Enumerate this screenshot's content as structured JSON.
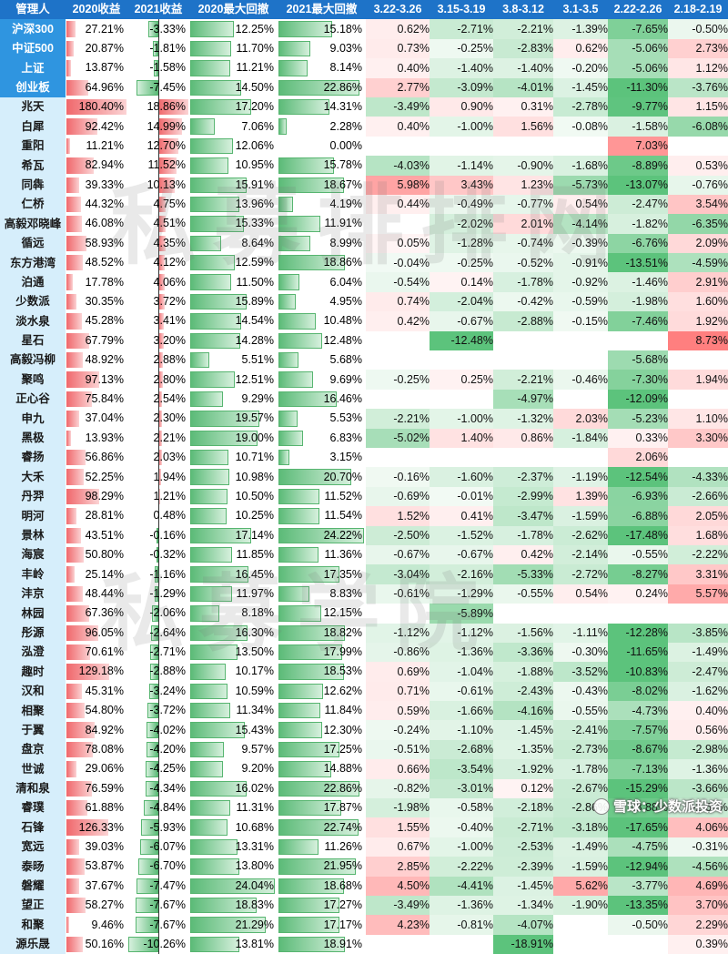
{
  "columns": [
    "管理人",
    "2020收益",
    "2021收益",
    "2020最大回撤",
    "2021最大回撤",
    "3.22-3.26",
    "3.15-3.19",
    "3.8-3.12",
    "3.1-3.5",
    "2.22-2.26",
    "2.18-2.19"
  ],
  "watermark_top": "私募排排网",
  "watermark_bottom": "私募学院",
  "credit": "雪球：少数派投资",
  "colors": {
    "header": "#1e73c8",
    "index_name": "#2f95e0",
    "name_bg": "#d6eefb",
    "red": "#f0686c",
    "green": "#5cbb78"
  },
  "rows": [
    {
      "name": "沪深300",
      "is_index": true,
      "r2020": "27.21%",
      "r2021": "-3.33%",
      "dd2020": "12.25%",
      "dd2021": "15.18%",
      "w1": "0.62%",
      "w2": "-2.71%",
      "w3": "-2.21%",
      "w4": "-1.39%",
      "w5": "-7.65%",
      "w6": "-0.50%"
    },
    {
      "name": "中证500",
      "is_index": true,
      "r2020": "20.87%",
      "r2021": "-1.81%",
      "dd2020": "11.70%",
      "dd2021": "9.03%",
      "w1": "0.73%",
      "w2": "-0.25%",
      "w3": "-2.83%",
      "w4": "0.62%",
      "w5": "-5.06%",
      "w6": "2.73%"
    },
    {
      "name": "上证",
      "is_index": true,
      "r2020": "13.87%",
      "r2021": "-1.58%",
      "dd2020": "11.21%",
      "dd2021": "8.14%",
      "w1": "0.40%",
      "w2": "-1.40%",
      "w3": "-1.40%",
      "w4": "-0.20%",
      "w5": "-5.06%",
      "w6": "1.12%"
    },
    {
      "name": "创业板",
      "is_index": true,
      "r2020": "64.96%",
      "r2021": "-7.45%",
      "dd2020": "14.50%",
      "dd2021": "22.86%",
      "w1": "2.77%",
      "w2": "-3.09%",
      "w3": "-4.01%",
      "w4": "-1.45%",
      "w5": "-11.30%",
      "w6": "-3.76%"
    },
    {
      "name": "兆天",
      "r2020": "180.40%",
      "r2021": "18.86%",
      "dd2020": "17.20%",
      "dd2021": "14.31%",
      "w1": "-3.49%",
      "w2": "0.90%",
      "w3": "0.31%",
      "w4": "-2.78%",
      "w5": "-9.77%",
      "w6": "1.15%"
    },
    {
      "name": "白犀",
      "r2020": "92.42%",
      "r2021": "14.99%",
      "dd2020": "7.06%",
      "dd2021": "2.28%",
      "w1": "0.40%",
      "w2": "-1.00%",
      "w3": "1.56%",
      "w4": "-0.08%",
      "w5": "-1.58%",
      "w6": "-6.08%"
    },
    {
      "name": "重阳",
      "r2020": "11.21%",
      "r2021": "12.70%",
      "dd2020": "12.06%",
      "dd2021": "0.00%",
      "w1": "",
      "w2": "",
      "w3": "",
      "w4": "",
      "w5": "7.03%",
      "w6": ""
    },
    {
      "name": "希瓦",
      "r2020": "82.94%",
      "r2021": "11.52%",
      "dd2020": "10.95%",
      "dd2021": "15.78%",
      "w1": "-4.03%",
      "w2": "-1.14%",
      "w3": "-0.90%",
      "w4": "-1.68%",
      "w5": "-8.89%",
      "w6": "0.53%"
    },
    {
      "name": "同犇",
      "r2020": "39.33%",
      "r2021": "10.13%",
      "dd2020": "15.91%",
      "dd2021": "18.67%",
      "w1": "5.98%",
      "w2": "3.43%",
      "w3": "1.23%",
      "w4": "-5.73%",
      "w5": "-13.07%",
      "w6": "-0.76%"
    },
    {
      "name": "仁桥",
      "r2020": "44.32%",
      "r2021": "4.75%",
      "dd2020": "13.96%",
      "dd2021": "4.19%",
      "w1": "0.44%",
      "w2": "-0.49%",
      "w3": "-0.77%",
      "w4": "0.54%",
      "w5": "-2.47%",
      "w6": "3.54%"
    },
    {
      "name": "高毅邓晓峰",
      "r2020": "46.08%",
      "r2021": "4.51%",
      "dd2020": "15.33%",
      "dd2021": "11.91%",
      "w1": "",
      "w2": "-2.02%",
      "w3": "2.01%",
      "w4": "-4.14%",
      "w5": "-1.82%",
      "w6": "-6.35%"
    },
    {
      "name": "循远",
      "r2020": "58.93%",
      "r2021": "4.35%",
      "dd2020": "8.64%",
      "dd2021": "8.99%",
      "w1": "0.05%",
      "w2": "-1.28%",
      "w3": "-0.74%",
      "w4": "-0.39%",
      "w5": "-6.76%",
      "w6": "2.09%"
    },
    {
      "name": "东方港湾",
      "r2020": "48.52%",
      "r2021": "4.12%",
      "dd2020": "12.59%",
      "dd2021": "18.86%",
      "w1": "-0.04%",
      "w2": "-0.25%",
      "w3": "-0.52%",
      "w4": "-0.91%",
      "w5": "-13.51%",
      "w6": "-4.59%"
    },
    {
      "name": "泊通",
      "r2020": "17.78%",
      "r2021": "4.06%",
      "dd2020": "11.50%",
      "dd2021": "6.04%",
      "w1": "-0.54%",
      "w2": "0.14%",
      "w3": "-1.78%",
      "w4": "-0.92%",
      "w5": "-1.46%",
      "w6": "2.91%"
    },
    {
      "name": "少数派",
      "r2020": "30.35%",
      "r2021": "3.72%",
      "dd2020": "15.89%",
      "dd2021": "4.95%",
      "w1": "0.74%",
      "w2": "-2.04%",
      "w3": "-0.42%",
      "w4": "-0.59%",
      "w5": "-1.98%",
      "w6": "1.60%"
    },
    {
      "name": "淡水泉",
      "r2020": "45.28%",
      "r2021": "3.41%",
      "dd2020": "14.54%",
      "dd2021": "10.48%",
      "w1": "0.42%",
      "w2": "-0.67%",
      "w3": "-2.88%",
      "w4": "-0.15%",
      "w5": "-7.46%",
      "w6": "1.92%"
    },
    {
      "name": "星石",
      "r2020": "67.79%",
      "r2021": "3.20%",
      "dd2020": "14.28%",
      "dd2021": "12.48%",
      "w1": "",
      "w2": "-12.48%",
      "w3": "",
      "w4": "",
      "w5": "",
      "w6": "8.73%"
    },
    {
      "name": "高毅冯柳",
      "r2020": "48.92%",
      "r2021": "2.88%",
      "dd2020": "5.51%",
      "dd2021": "5.68%",
      "w1": "",
      "w2": "",
      "w3": "",
      "w4": "",
      "w5": "-5.68%",
      "w6": ""
    },
    {
      "name": "聚鸣",
      "r2020": "97.13%",
      "r2021": "2.80%",
      "dd2020": "12.51%",
      "dd2021": "9.69%",
      "w1": "-0.25%",
      "w2": "0.25%",
      "w3": "-2.21%",
      "w4": "-0.46%",
      "w5": "-7.30%",
      "w6": "1.94%"
    },
    {
      "name": "正心谷",
      "r2020": "75.84%",
      "r2021": "2.54%",
      "dd2020": "9.29%",
      "dd2021": "16.46%",
      "w1": "",
      "w2": "",
      "w3": "-4.97%",
      "w4": "",
      "w5": "-12.09%",
      "w6": ""
    },
    {
      "name": "申九",
      "r2020": "37.04%",
      "r2021": "2.30%",
      "dd2020": "19.57%",
      "dd2021": "5.53%",
      "w1": "-2.21%",
      "w2": "-1.00%",
      "w3": "-1.32%",
      "w4": "2.03%",
      "w5": "-5.23%",
      "w6": "1.10%"
    },
    {
      "name": "黑极",
      "r2020": "13.93%",
      "r2021": "2.21%",
      "dd2020": "19.00%",
      "dd2021": "6.83%",
      "w1": "-5.02%",
      "w2": "1.40%",
      "w3": "0.86%",
      "w4": "-1.84%",
      "w5": "0.33%",
      "w6": "3.30%"
    },
    {
      "name": "睿扬",
      "r2020": "56.86%",
      "r2021": "2.03%",
      "dd2020": "10.71%",
      "dd2021": "3.15%",
      "w1": "",
      "w2": "",
      "w3": "",
      "w4": "",
      "w5": "2.06%",
      "w6": ""
    },
    {
      "name": "大禾",
      "r2020": "52.25%",
      "r2021": "1.94%",
      "dd2020": "10.98%",
      "dd2021": "20.70%",
      "w1": "-0.16%",
      "w2": "-1.60%",
      "w3": "-2.37%",
      "w4": "-1.19%",
      "w5": "-12.54%",
      "w6": "-4.33%"
    },
    {
      "name": "丹羿",
      "r2020": "98.29%",
      "r2021": "1.21%",
      "dd2020": "10.50%",
      "dd2021": "11.52%",
      "w1": "-0.69%",
      "w2": "-0.01%",
      "w3": "-2.99%",
      "w4": "1.39%",
      "w5": "-6.93%",
      "w6": "-2.66%"
    },
    {
      "name": "明河",
      "r2020": "28.81%",
      "r2021": "0.48%",
      "dd2020": "10.25%",
      "dd2021": "11.54%",
      "w1": "1.52%",
      "w2": "0.41%",
      "w3": "-3.47%",
      "w4": "-1.59%",
      "w5": "-6.88%",
      "w6": "2.05%"
    },
    {
      "name": "景林",
      "r2020": "43.51%",
      "r2021": "-0.16%",
      "dd2020": "17.14%",
      "dd2021": "24.22%",
      "w1": "-2.50%",
      "w2": "-1.52%",
      "w3": "-1.78%",
      "w4": "-2.62%",
      "w5": "-17.48%",
      "w6": "1.68%"
    },
    {
      "name": "海宸",
      "r2020": "50.80%",
      "r2021": "-0.32%",
      "dd2020": "11.85%",
      "dd2021": "11.36%",
      "w1": "-0.67%",
      "w2": "-0.67%",
      "w3": "0.42%",
      "w4": "-2.14%",
      "w5": "-0.55%",
      "w6": "-2.22%"
    },
    {
      "name": "丰岭",
      "r2020": "25.14%",
      "r2021": "-1.16%",
      "dd2020": "16.45%",
      "dd2021": "17.35%",
      "w1": "-3.04%",
      "w2": "-2.16%",
      "w3": "-5.33%",
      "w4": "-2.72%",
      "w5": "-8.27%",
      "w6": "3.31%"
    },
    {
      "name": "沣京",
      "r2020": "48.44%",
      "r2021": "-1.29%",
      "dd2020": "11.97%",
      "dd2021": "8.83%",
      "w1": "-0.61%",
      "w2": "-1.29%",
      "w3": "-0.55%",
      "w4": "0.54%",
      "w5": "0.24%",
      "w6": "5.57%"
    },
    {
      "name": "林园",
      "r2020": "67.36%",
      "r2021": "-2.06%",
      "dd2020": "8.18%",
      "dd2021": "12.15%",
      "w1": "",
      "w2": "-5.89%",
      "w3": "",
      "w4": "",
      "w5": "",
      "w6": ""
    },
    {
      "name": "彤源",
      "r2020": "96.05%",
      "r2021": "-2.64%",
      "dd2020": "16.30%",
      "dd2021": "18.82%",
      "w1": "-1.12%",
      "w2": "-1.12%",
      "w3": "-1.56%",
      "w4": "-1.11%",
      "w5": "-12.28%",
      "w6": "-3.85%"
    },
    {
      "name": "泓澄",
      "r2020": "70.61%",
      "r2021": "-2.71%",
      "dd2020": "13.50%",
      "dd2021": "17.99%",
      "w1": "-0.86%",
      "w2": "-1.36%",
      "w3": "-3.36%",
      "w4": "-0.30%",
      "w5": "-11.65%",
      "w6": "-1.49%"
    },
    {
      "name": "趣时",
      "r2020": "129.18%",
      "r2021": "-2.88%",
      "dd2020": "10.17%",
      "dd2021": "18.53%",
      "w1": "0.69%",
      "w2": "-1.04%",
      "w3": "-1.88%",
      "w4": "-3.52%",
      "w5": "-10.83%",
      "w6": "-2.47%"
    },
    {
      "name": "汉和",
      "r2020": "45.31%",
      "r2021": "-3.24%",
      "dd2020": "10.59%",
      "dd2021": "12.62%",
      "w1": "0.71%",
      "w2": "-0.61%",
      "w3": "-2.43%",
      "w4": "-0.43%",
      "w5": "-8.02%",
      "w6": "-1.62%"
    },
    {
      "name": "相聚",
      "r2020": "54.80%",
      "r2021": "-3.72%",
      "dd2020": "11.34%",
      "dd2021": "11.84%",
      "w1": "0.59%",
      "w2": "-1.66%",
      "w3": "-4.16%",
      "w4": "-0.55%",
      "w5": "-4.73%",
      "w6": "0.40%"
    },
    {
      "name": "于翼",
      "r2020": "84.92%",
      "r2021": "-4.02%",
      "dd2020": "15.43%",
      "dd2021": "12.30%",
      "w1": "-0.24%",
      "w2": "-1.10%",
      "w3": "-1.45%",
      "w4": "-2.41%",
      "w5": "-7.57%",
      "w6": "0.56%"
    },
    {
      "name": "盘京",
      "r2020": "78.08%",
      "r2021": "-4.20%",
      "dd2020": "9.57%",
      "dd2021": "17.25%",
      "w1": "-0.51%",
      "w2": "-2.68%",
      "w3": "-1.35%",
      "w4": "-2.73%",
      "w5": "-8.67%",
      "w6": "-2.98%"
    },
    {
      "name": "世诚",
      "r2020": "29.06%",
      "r2021": "-4.25%",
      "dd2020": "9.20%",
      "dd2021": "14.88%",
      "w1": "0.66%",
      "w2": "-3.54%",
      "w3": "-1.92%",
      "w4": "-1.78%",
      "w5": "-7.13%",
      "w6": "-1.36%"
    },
    {
      "name": "清和泉",
      "r2020": "76.59%",
      "r2021": "-4.34%",
      "dd2020": "16.02%",
      "dd2021": "22.86%",
      "w1": "-0.82%",
      "w2": "-3.01%",
      "w3": "0.12%",
      "w4": "-2.67%",
      "w5": "-15.29%",
      "w6": "-3.66%"
    },
    {
      "name": "睿璞",
      "r2020": "61.88%",
      "r2021": "-4.84%",
      "dd2020": "11.31%",
      "dd2021": "17.87%",
      "w1": "-1.98%",
      "w2": "-0.58%",
      "w3": "-2.18%",
      "w4": "-2.86%",
      "w5": "-8.88%",
      "w6": "-2.67%"
    },
    {
      "name": "石锋",
      "r2020": "126.33%",
      "r2021": "-5.93%",
      "dd2020": "10.68%",
      "dd2021": "22.74%",
      "w1": "1.55%",
      "w2": "-0.40%",
      "w3": "-2.71%",
      "w4": "-3.18%",
      "w5": "-17.65%",
      "w6": "4.06%"
    },
    {
      "name": "宽远",
      "r2020": "39.03%",
      "r2021": "-6.07%",
      "dd2020": "13.31%",
      "dd2021": "11.26%",
      "w1": "0.67%",
      "w2": "-1.00%",
      "w3": "-2.53%",
      "w4": "-1.49%",
      "w5": "-4.75%",
      "w6": "-0.31%"
    },
    {
      "name": "泰旸",
      "r2020": "53.87%",
      "r2021": "-6.70%",
      "dd2020": "13.80%",
      "dd2021": "21.95%",
      "w1": "2.85%",
      "w2": "-2.22%",
      "w3": "-2.39%",
      "w4": "-1.59%",
      "w5": "-12.94%",
      "w6": "-4.56%"
    },
    {
      "name": "磐耀",
      "r2020": "37.67%",
      "r2021": "-7.47%",
      "dd2020": "24.04%",
      "dd2021": "18.68%",
      "w1": "4.50%",
      "w2": "-4.41%",
      "w3": "-1.45%",
      "w4": "5.62%",
      "w5": "-3.77%",
      "w6": "4.69%"
    },
    {
      "name": "望正",
      "r2020": "58.27%",
      "r2021": "-7.67%",
      "dd2020": "18.83%",
      "dd2021": "17.27%",
      "w1": "-3.49%",
      "w2": "-1.36%",
      "w3": "-1.34%",
      "w4": "-1.90%",
      "w5": "-13.35%",
      "w6": "3.70%"
    },
    {
      "name": "和聚",
      "r2020": "9.46%",
      "r2021": "-7.67%",
      "dd2020": "21.29%",
      "dd2021": "17.17%",
      "w1": "4.23%",
      "w2": "-0.81%",
      "w3": "-4.07%",
      "w4": "",
      "w5": "-0.50%",
      "w6": "2.29%"
    },
    {
      "name": "源乐晟",
      "r2020": "50.16%",
      "r2021": "-10.26%",
      "dd2020": "13.81%",
      "dd2021": "18.91%",
      "w1": "",
      "w2": "",
      "w3": "-18.91%",
      "w4": "",
      "w5": "",
      "w6": "0.39%"
    }
  ]
}
